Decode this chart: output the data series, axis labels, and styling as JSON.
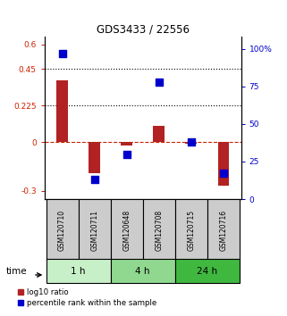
{
  "title": "GDS3433 / 22556",
  "samples": [
    "GSM120710",
    "GSM120711",
    "GSM120648",
    "GSM120708",
    "GSM120715",
    "GSM120716"
  ],
  "log10_ratio": [
    0.38,
    -0.19,
    -0.02,
    0.1,
    -0.01,
    -0.27
  ],
  "percentile_rank": [
    97,
    13,
    30,
    78,
    38,
    17
  ],
  "groups": [
    {
      "label": "1 h",
      "indices": [
        0,
        1
      ],
      "color": "#c8f0c8"
    },
    {
      "label": "4 h",
      "indices": [
        2,
        3
      ],
      "color": "#90d890"
    },
    {
      "label": "24 h",
      "indices": [
        4,
        5
      ],
      "color": "#40b840"
    }
  ],
  "bar_color": "#b22222",
  "dot_color": "#0000cc",
  "ylim_left": [
    -0.35,
    0.65
  ],
  "ylim_right": [
    0,
    108.333
  ],
  "yticks_left": [
    -0.3,
    0.0,
    0.225,
    0.45,
    0.6
  ],
  "ytick_labels_left": [
    "-0.3",
    "0",
    "0.225",
    "0.45",
    "0.6"
  ],
  "yticks_right": [
    0,
    25,
    50,
    75,
    100
  ],
  "ytick_labels_right": [
    "0",
    "25",
    "50",
    "75",
    "100%"
  ],
  "hlines_dotted": [
    0.45,
    0.225
  ],
  "hline_dashed": 0.0,
  "bar_width": 0.35,
  "dot_size": 28,
  "xlabel_time": "time",
  "legend_items": [
    "log10 ratio",
    "percentile rank within the sample"
  ],
  "bg_plot": "#ffffff",
  "bg_sample_box": "#cccccc"
}
